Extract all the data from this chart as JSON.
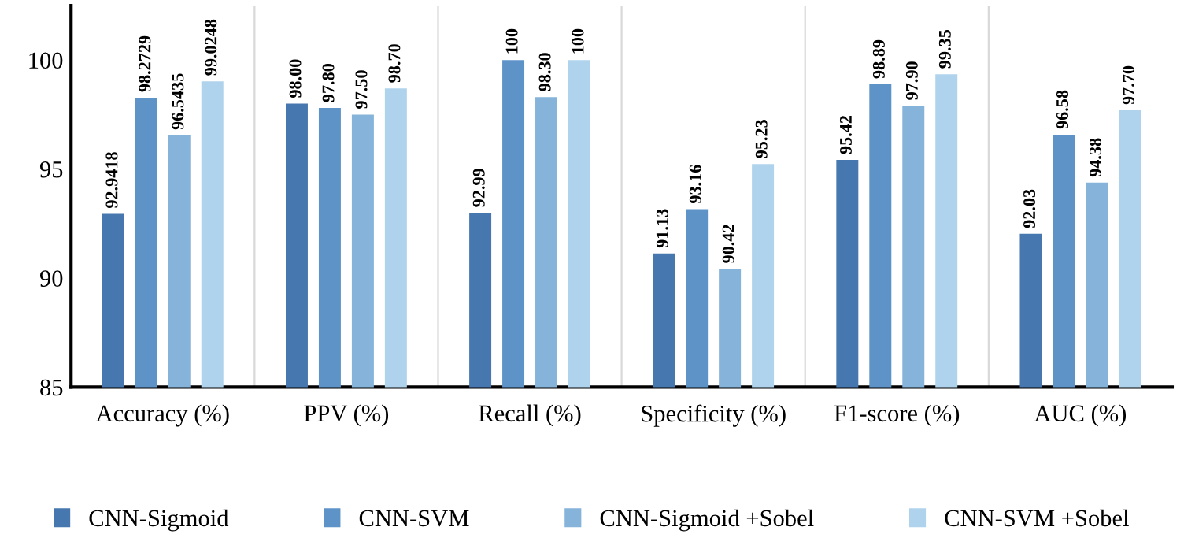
{
  "chart_data": {
    "type": "bar",
    "categories": [
      "Accuracy (%)",
      "PPV (%)",
      "Recall (%)",
      "Specificity (%)",
      "F1-score (%)",
      "AUC (%)"
    ],
    "series": [
      {
        "name": "CNN-Sigmoid",
        "color": "#4677ae",
        "values": [
          92.9418,
          98.0,
          92.99,
          91.13,
          95.42,
          92.03
        ],
        "value_labels": [
          "92.9418",
          "98.00",
          "92.99",
          "91.13",
          "95.42",
          "92.03"
        ]
      },
      {
        "name": "CNN-SVM",
        "color": "#5e93c8",
        "values": [
          98.2729,
          97.8,
          100,
          93.16,
          98.89,
          96.58
        ],
        "value_labels": [
          "98.2729",
          "97.80",
          "100",
          "93.16",
          "98.89",
          "96.58"
        ]
      },
      {
        "name": "CNN-Sigmoid +Sobel",
        "color": "#85b3da",
        "values": [
          96.5435,
          97.5,
          98.3,
          90.42,
          97.9,
          94.38
        ],
        "value_labels": [
          "96.5435",
          "97.50",
          "98.30",
          "90.42",
          "97.90",
          "94.38"
        ]
      },
      {
        "name": "CNN-SVM +Sobel",
        "color": "#afd3ec",
        "values": [
          99.0248,
          98.7,
          100,
          95.23,
          99.35,
          97.7
        ],
        "value_labels": [
          "99.0248",
          "98.70",
          "100",
          "95.23",
          "99.35",
          "97.70"
        ]
      }
    ],
    "ylim": [
      85,
      102.5
    ],
    "yticks": [
      85,
      90,
      95,
      100
    ],
    "grid": "x",
    "legend": "bottom"
  }
}
